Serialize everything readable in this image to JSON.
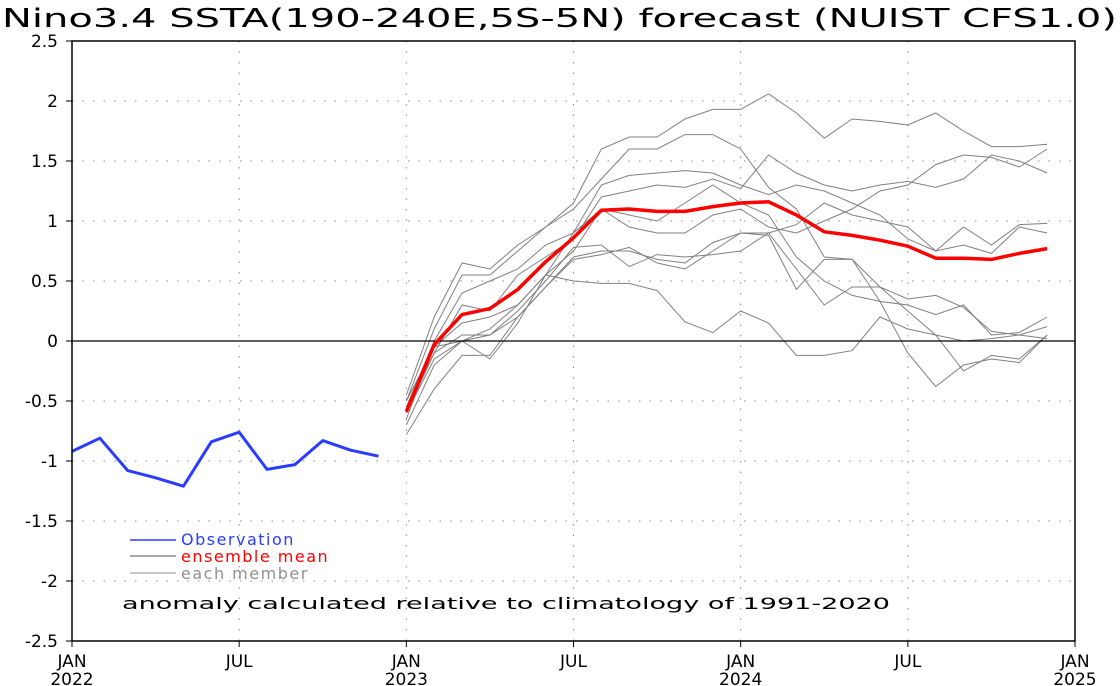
{
  "chart_data": {
    "type": "line",
    "title": "Nino3.4 SSTA(190-240E,5S-5N) forecast (NUIST CFS1.0)",
    "xlabel": "",
    "ylabel": "",
    "ylim": [
      -2.5,
      2.5
    ],
    "yticks": [
      "2.5",
      "2",
      "1.5",
      "1",
      "0.5",
      "0",
      "-0.5",
      "-1",
      "-1.5",
      "-2",
      "-2.5"
    ],
    "ytick_values": [
      2.5,
      2,
      1.5,
      1,
      0.5,
      0,
      -0.5,
      -1,
      -1.5,
      -2,
      -2.5
    ],
    "xticks": [
      {
        "month": 0,
        "line1": "JAN",
        "line2": "2022"
      },
      {
        "month": 6,
        "line1": "JUL",
        "line2": ""
      },
      {
        "month": 12,
        "line1": "JAN",
        "line2": "2023"
      },
      {
        "month": 18,
        "line1": "JUL",
        "line2": ""
      },
      {
        "month": 24,
        "line1": "JAN",
        "line2": "2024"
      },
      {
        "month": 30,
        "line1": "JUL",
        "line2": ""
      },
      {
        "month": 36,
        "line1": "JAN",
        "line2": "2025"
      }
    ],
    "xlim_months": [
      0,
      36
    ],
    "grid": true,
    "legend_placement": "bottom-left",
    "legend": [
      "Observation",
      "ensemble mean",
      "each member"
    ],
    "annotation": "anomaly calculated relative to climatology of 1991-2020",
    "colors": {
      "observation": "#2a3cff",
      "mean": "#ff0000",
      "member": "#808080",
      "legend_mean_line": "#505050"
    },
    "observation": {
      "start_month": 0,
      "values": [
        -0.92,
        -0.81,
        -1.08,
        -1.14,
        -1.21,
        -0.84,
        -0.76,
        -1.07,
        -1.03,
        -0.83,
        -0.91,
        -0.96
      ]
    },
    "ensemble_mean": {
      "start_month": 12,
      "values": [
        -0.59,
        -0.03,
        0.22,
        0.27,
        0.43,
        0.66,
        0.86,
        1.09,
        1.1,
        1.08,
        1.08,
        1.12,
        1.15,
        1.16,
        1.05,
        0.91,
        0.88,
        0.84,
        0.79,
        0.69,
        0.69,
        0.68,
        0.73,
        0.77
      ]
    },
    "members": {
      "start_month": 12,
      "series": [
        [
          -0.45,
          0.2,
          0.65,
          0.6,
          0.8,
          0.95,
          1.15,
          1.6,
          1.7,
          1.7,
          1.85,
          1.93,
          1.93,
          2.06,
          1.9,
          1.69,
          1.85,
          1.83,
          1.8,
          1.9,
          1.75,
          1.62,
          1.62,
          1.64
        ],
        [
          -0.5,
          0.1,
          0.55,
          0.55,
          0.75,
          0.95,
          1.1,
          1.35,
          1.6,
          1.6,
          1.72,
          1.72,
          1.6,
          1.28,
          1.1,
          0.7,
          0.68,
          0.45,
          0.25,
          0.05,
          -0.25,
          -0.12,
          -0.15,
          0.05
        ],
        [
          -0.55,
          0.0,
          0.4,
          0.5,
          0.6,
          0.8,
          0.9,
          1.3,
          1.38,
          1.4,
          1.42,
          1.4,
          1.3,
          1.22,
          1.3,
          1.25,
          1.15,
          1.05,
          0.85,
          0.75,
          0.95,
          0.8,
          0.97,
          0.98
        ],
        [
          -0.6,
          -0.1,
          0.3,
          0.25,
          0.55,
          0.7,
          0.85,
          1.2,
          1.25,
          1.3,
          1.28,
          1.35,
          1.27,
          1.55,
          1.4,
          1.3,
          1.25,
          1.3,
          1.33,
          1.28,
          1.35,
          1.55,
          1.5,
          1.4
        ],
        [
          -0.65,
          -0.05,
          0.15,
          0.2,
          0.3,
          0.55,
          0.75,
          1.1,
          1.05,
          1.0,
          1.15,
          1.3,
          1.15,
          1.05,
          0.7,
          0.5,
          0.38,
          0.33,
          0.3,
          0.22,
          0.3,
          0.05,
          0.07,
          0.2
        ],
        [
          -0.6,
          -0.15,
          0.0,
          0.1,
          0.3,
          0.55,
          0.9,
          1.1,
          0.95,
          0.9,
          0.9,
          1.05,
          1.1,
          0.95,
          0.9,
          1.0,
          1.1,
          1.25,
          1.3,
          1.47,
          1.55,
          1.53,
          1.45,
          1.6
        ],
        [
          -0.7,
          -0.2,
          0.0,
          0.05,
          0.25,
          0.5,
          0.78,
          0.8,
          0.62,
          0.72,
          0.7,
          0.72,
          0.75,
          0.9,
          0.97,
          1.15,
          1.05,
          1.0,
          0.95,
          0.75,
          0.8,
          0.73,
          0.95,
          0.9
        ],
        [
          -0.55,
          -0.1,
          0.05,
          0.05,
          0.2,
          0.45,
          0.7,
          0.75,
          0.75,
          0.68,
          0.65,
          0.82,
          0.9,
          0.9,
          0.6,
          0.3,
          0.45,
          0.45,
          0.35,
          0.38,
          0.28,
          0.08,
          0.05,
          0.02
        ],
        [
          -0.5,
          -0.05,
          0.0,
          -0.15,
          0.15,
          0.55,
          0.5,
          0.48,
          0.48,
          0.42,
          0.16,
          0.07,
          0.25,
          0.15,
          -0.12,
          -0.12,
          -0.08,
          0.2,
          0.1,
          0.05,
          0.0,
          0.02,
          0.05,
          0.12
        ],
        [
          -0.78,
          -0.4,
          -0.12,
          -0.12,
          0.2,
          0.45,
          0.68,
          0.72,
          0.78,
          0.65,
          0.6,
          0.75,
          0.9,
          0.88,
          0.43,
          0.68,
          0.68,
          0.33,
          -0.1,
          -0.38,
          -0.2,
          -0.15,
          -0.18,
          0.05
        ]
      ]
    }
  }
}
